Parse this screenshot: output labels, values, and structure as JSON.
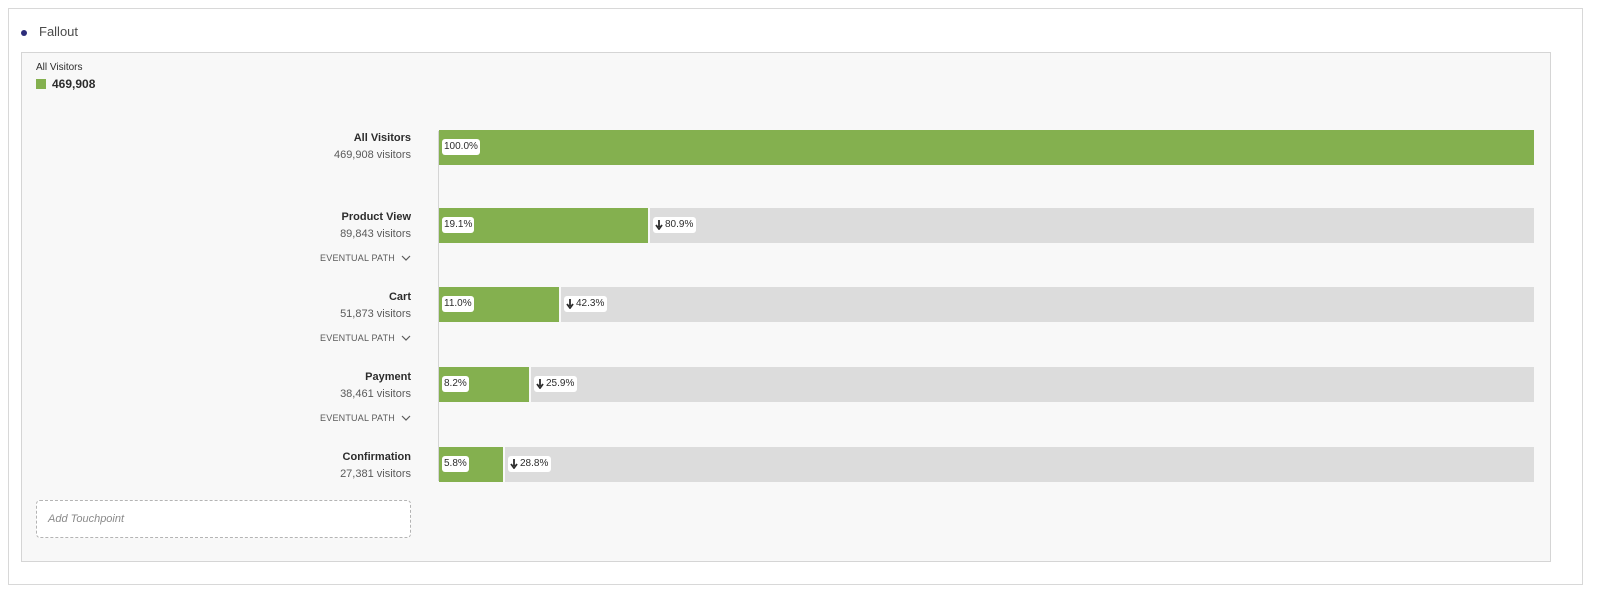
{
  "panel": {
    "title": "Fallout"
  },
  "legend": {
    "title": "All Visitors",
    "value": "469,908",
    "color": "#84b04f"
  },
  "steps": [
    {
      "name": "All Visitors",
      "visitors": "469,908 visitors",
      "percent": "100.0%",
      "fraction": 1.0,
      "drop": null,
      "eventual_path": null
    },
    {
      "name": "Product View",
      "visitors": "89,843 visitors",
      "percent": "19.1%",
      "fraction": 0.191,
      "drop": "80.9%",
      "eventual_path": "EVENTUAL PATH"
    },
    {
      "name": "Cart",
      "visitors": "51,873 visitors",
      "percent": "11.0%",
      "fraction": 0.11,
      "drop": "42.3%",
      "eventual_path": "EVENTUAL PATH"
    },
    {
      "name": "Payment",
      "visitors": "38,461 visitors",
      "percent": "8.2%",
      "fraction": 0.082,
      "drop": "25.9%",
      "eventual_path": "EVENTUAL PATH"
    },
    {
      "name": "Confirmation",
      "visitors": "27,381 visitors",
      "percent": "5.8%",
      "fraction": 0.058,
      "drop": "28.8%",
      "eventual_path": null
    }
  ],
  "add_touchpoint": {
    "placeholder": "Add Touchpoint"
  },
  "icons": {
    "panel": "bullet-dot-icon",
    "expand": "chevron-down-icon",
    "drop": "arrow-down-icon"
  },
  "colors": {
    "fill": "#84b04f",
    "track": "#dcdcdc",
    "accent_dot": "#2d2d7a"
  }
}
